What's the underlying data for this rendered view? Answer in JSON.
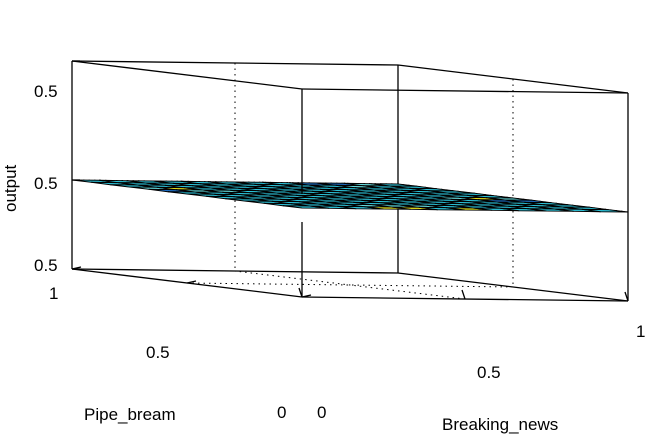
{
  "chart_data": {
    "type": "surface",
    "title": "",
    "xlabel": "Breaking_news",
    "ylabel": "Pipe_bream",
    "zlabel": "output",
    "x_tick_labels": [
      "0",
      "0.5",
      "1"
    ],
    "y_tick_labels": [
      "0",
      "0.5",
      "1"
    ],
    "z_tick_labels": [
      "0.5",
      "0.5",
      "0.5"
    ],
    "xlim": [
      0,
      1
    ],
    "ylim": [
      0,
      1
    ],
    "zlim": [
      0.5,
      0.5
    ],
    "grid": true,
    "colors": {
      "base": "#2fd2ea",
      "light": "#6ff0f2",
      "dark": "#1f78d8",
      "yellow": "#f5f01e"
    },
    "grid_size": [
      12,
      12
    ],
    "surface_z": "constant 0.5",
    "highlight_cells": [
      {
        "i": 3,
        "j": 0,
        "color": "yellow"
      },
      {
        "i": 4,
        "j": 0,
        "color": "yellow"
      },
      {
        "i": 6,
        "j": 0,
        "color": "yellow"
      },
      {
        "i": 3,
        "j": 1,
        "color": "light"
      },
      {
        "i": 4,
        "j": 1,
        "color": "light"
      },
      {
        "i": 5,
        "j": 1,
        "color": "light"
      },
      {
        "i": 11,
        "j": 4,
        "color": "dark"
      },
      {
        "i": 11,
        "j": 5,
        "color": "light"
      },
      {
        "i": 10,
        "j": 4,
        "color": "dark"
      },
      {
        "i": 10,
        "j": 5,
        "color": "yellow"
      },
      {
        "i": 9,
        "j": 5,
        "color": "light"
      },
      {
        "i": 8,
        "j": 11,
        "color": "dark"
      },
      {
        "i": 9,
        "j": 11,
        "color": "dark"
      },
      {
        "i": 10,
        "j": 11,
        "color": "light"
      },
      {
        "i": 9,
        "j": 10,
        "color": "light"
      },
      {
        "i": 0,
        "j": 7,
        "color": "dark"
      },
      {
        "i": 0,
        "j": 8,
        "color": "light"
      },
      {
        "i": 1,
        "j": 8,
        "color": "yellow"
      },
      {
        "i": 1,
        "j": 7,
        "color": "light"
      },
      {
        "i": 2,
        "j": 7,
        "color": "light"
      }
    ]
  }
}
